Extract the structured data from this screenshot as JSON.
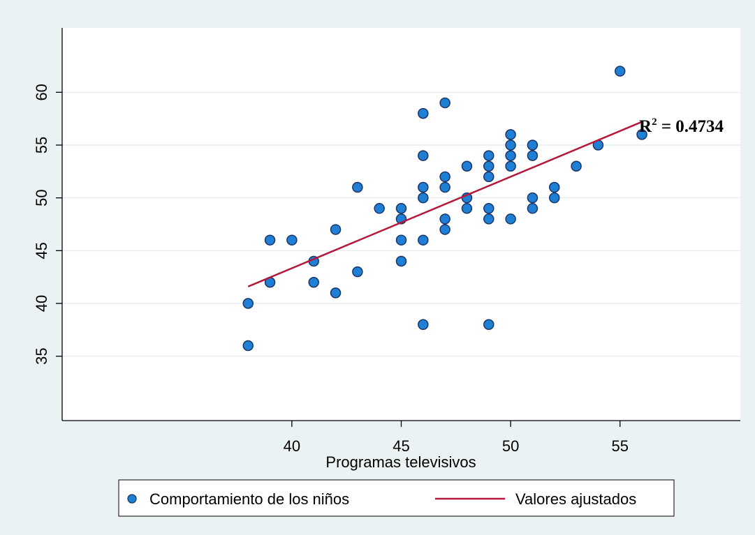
{
  "chart_data": {
    "type": "scatter",
    "x_label": "Programas televisivos",
    "xlim": [
      29.5,
      60.5
    ],
    "xticks": [
      40,
      45,
      50,
      55
    ],
    "ylim": [
      28.9,
      66.1
    ],
    "yticks": [
      35,
      40,
      45,
      50,
      55,
      60
    ],
    "grid": true,
    "legend": "bottom",
    "annotation": {
      "base": "R",
      "exponent": "2",
      "text": " = 0.4734",
      "color": "#b5121b"
    },
    "series": [
      {
        "name": "Comportamiento de los niños",
        "type": "scatter",
        "color": "#1f7fd4",
        "x": [
          38,
          38,
          39,
          39,
          40,
          41,
          41,
          42,
          42,
          43,
          43,
          44,
          45,
          45,
          45,
          45,
          46,
          46,
          46,
          46,
          46,
          46,
          47,
          47,
          47,
          47,
          47,
          48,
          48,
          48,
          49,
          49,
          49,
          49,
          49,
          49,
          50,
          50,
          50,
          50,
          50,
          51,
          51,
          51,
          51,
          52,
          52,
          53,
          54,
          55,
          56
        ],
        "values": [
          40,
          36,
          46,
          42,
          46,
          44,
          42,
          47,
          41,
          51,
          43,
          49,
          49,
          48,
          46,
          44,
          58,
          54,
          51,
          50,
          46,
          38,
          59,
          52,
          51,
          48,
          47,
          53,
          50,
          49,
          54,
          53,
          52,
          49,
          48,
          38,
          56,
          55,
          54,
          53,
          48,
          55,
          54,
          50,
          49,
          51,
          50,
          53,
          55,
          62,
          56
        ]
      },
      {
        "name": "Valores ajustados",
        "type": "line",
        "color": "#b5183c",
        "x": [
          38,
          56
        ],
        "values": [
          41.6,
          57.2
        ]
      }
    ]
  }
}
